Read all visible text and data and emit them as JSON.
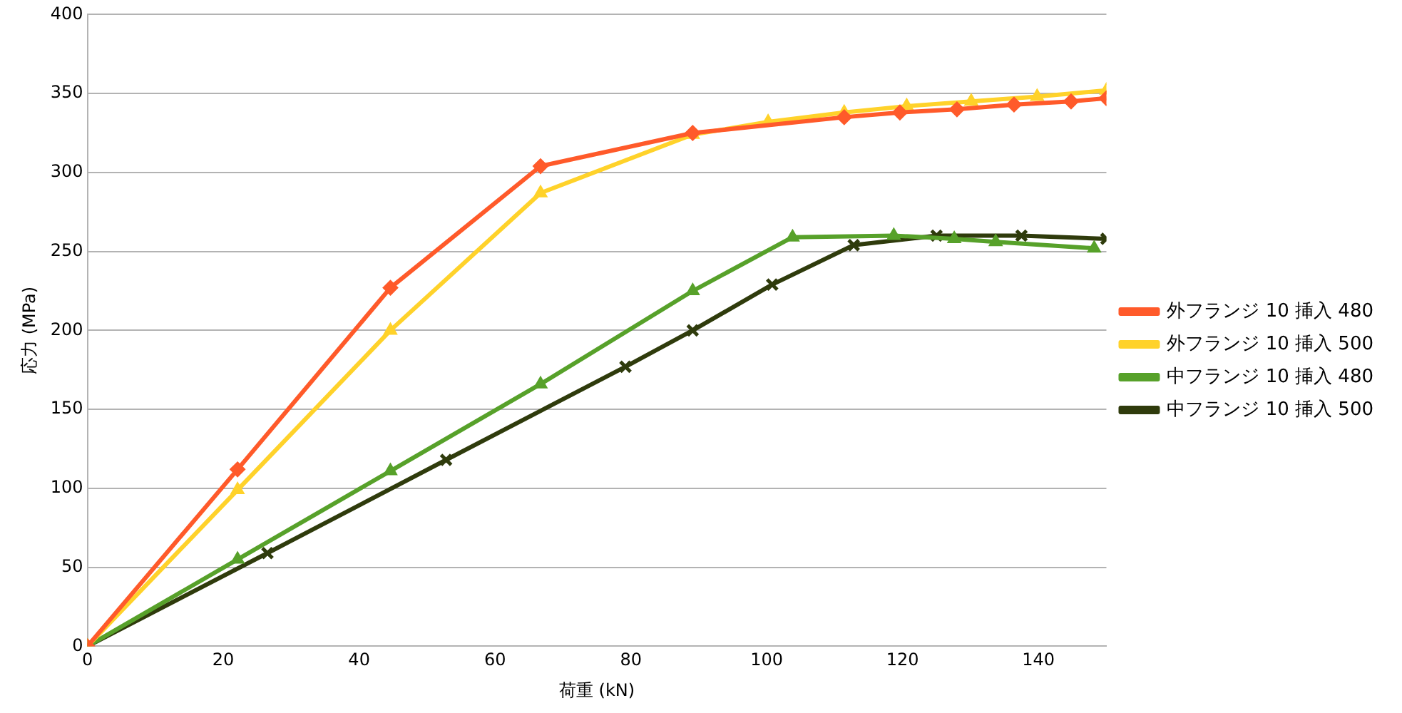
{
  "chart_data": {
    "type": "line",
    "xlabel": "荷重 (kN)",
    "ylabel": "応力 (MPa)",
    "xlim": [
      0,
      150
    ],
    "xticks": [
      0,
      20,
      40,
      60,
      80,
      100,
      120,
      140
    ],
    "ylim": [
      0,
      400
    ],
    "yticks": [
      0,
      50,
      100,
      150,
      200,
      250,
      300,
      350,
      400
    ],
    "grid": "y",
    "legend": "right",
    "line_style": "solid",
    "series": [
      {
        "name": "外フランジ 10 挿入 480",
        "color": "#ff5a2a",
        "marker": "diamond",
        "x": [
          0,
          22.1,
          44.6,
          66.7,
          89.1,
          111.4,
          119.6,
          128,
          136.4,
          144.8,
          150
        ],
        "values": [
          0,
          112,
          227,
          304,
          325,
          335,
          338,
          340,
          343,
          345,
          347
        ]
      },
      {
        "name": "外フランジ 10 挿入 500",
        "color": "#ffd22a",
        "marker": "triangle",
        "x": [
          0,
          22.1,
          44.6,
          66.7,
          89.1,
          100.2,
          111.4,
          120.6,
          130.1,
          139.8,
          150
        ],
        "values": [
          0,
          99,
          200,
          287,
          324,
          332,
          338,
          342,
          345,
          348,
          352
        ]
      },
      {
        "name": "中フランジ 10 挿入 480",
        "color": "#57a12a",
        "marker": "triangle",
        "x": [
          0,
          22.1,
          44.6,
          66.7,
          89.1,
          103.8,
          118.7,
          127.6,
          133.7,
          148.2
        ],
        "values": [
          0,
          55,
          111,
          166,
          225,
          259,
          260,
          258,
          256,
          252
        ]
      },
      {
        "name": "中フランジ 10 挿入 500",
        "color": "#2f3b0c",
        "marker": "cross",
        "x": [
          0,
          26.5,
          52.8,
          79.2,
          89.1,
          100.8,
          112.8,
          125,
          137.5,
          150
        ],
        "values": [
          0,
          59,
          118,
          177,
          200,
          229,
          254,
          260,
          260,
          258
        ]
      }
    ]
  }
}
